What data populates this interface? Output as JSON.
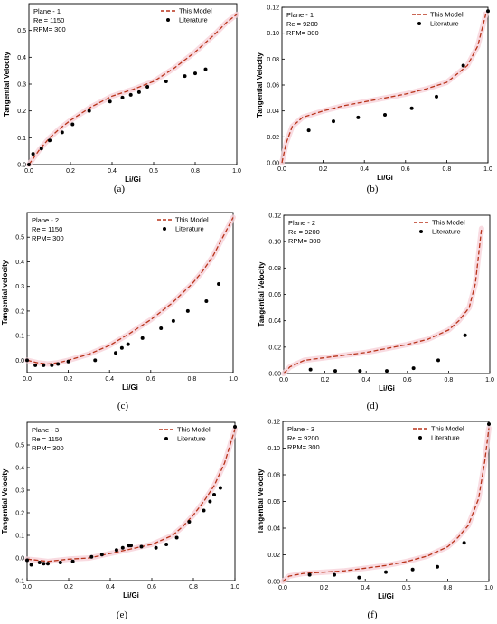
{
  "figure": {
    "colors": {
      "model": "#b8341b",
      "literature": "#000000",
      "glow": "#f7d2da"
    },
    "legend_model": "This Model",
    "legend_literature": "Literature"
  },
  "chart_data": [
    {
      "type": "line",
      "caption": "(a)",
      "info": [
        "Plane - 1",
        "Re = 1150",
        "RPM= 300"
      ],
      "xlabel": "Li/Gi",
      "ylabel": "Tangential Velocity",
      "xlim": [
        0,
        1.0
      ],
      "ylim": [
        0,
        0.6
      ],
      "xticks": [
        0,
        0.2,
        0.4,
        0.6,
        0.8,
        1.0
      ],
      "xticklabels": [
        "0.0",
        "0.2",
        "0.4",
        "0.6",
        "0.8",
        "1.0"
      ],
      "yticks": [
        0,
        0.1,
        0.2,
        0.3,
        0.4,
        0.5
      ],
      "yticklabels": [
        "0.0",
        "0.1",
        "0.2",
        "0.3",
        "0.4",
        "0.5"
      ],
      "series": [
        {
          "name": "This Model",
          "kind": "line",
          "x": [
            0,
            0.05,
            0.1,
            0.15,
            0.2,
            0.3,
            0.4,
            0.5,
            0.6,
            0.7,
            0.8,
            0.9,
            0.95,
            1.0
          ],
          "y": [
            0.0,
            0.055,
            0.1,
            0.135,
            0.165,
            0.215,
            0.255,
            0.28,
            0.31,
            0.36,
            0.42,
            0.49,
            0.53,
            0.56
          ]
        },
        {
          "name": "Literature",
          "kind": "scatter",
          "x": [
            0.0,
            0.02,
            0.06,
            0.1,
            0.16,
            0.21,
            0.29,
            0.39,
            0.45,
            0.49,
            0.53,
            0.57,
            0.66,
            0.75,
            0.8,
            0.85
          ],
          "y": [
            0.0,
            0.04,
            0.06,
            0.09,
            0.12,
            0.15,
            0.2,
            0.235,
            0.25,
            0.26,
            0.27,
            0.29,
            0.31,
            0.33,
            0.34,
            0.355
          ]
        }
      ]
    },
    {
      "type": "line",
      "caption": "(b)",
      "info": [
        "Plane - 1",
        "Re = 9200",
        "RPM= 300"
      ],
      "xlabel": "Li/Gi",
      "ylabel": "Tangential Velocity",
      "xlim": [
        0,
        1.0
      ],
      "ylim": [
        0,
        0.12
      ],
      "xticks": [
        0,
        0.2,
        0.4,
        0.6,
        0.8,
        1.0
      ],
      "xticklabels": [
        "0.0",
        "0.2",
        "0.4",
        "0.6",
        "0.8",
        "1.0"
      ],
      "yticks": [
        0,
        0.02,
        0.04,
        0.06,
        0.08,
        0.1,
        0.12
      ],
      "yticklabels": [
        "0.00",
        "0.02",
        "0.04",
        "0.06",
        "0.08",
        "0.10",
        "0.12"
      ],
      "series": [
        {
          "name": "This Model",
          "kind": "line",
          "x": [
            0,
            0.02,
            0.05,
            0.1,
            0.2,
            0.3,
            0.4,
            0.5,
            0.6,
            0.7,
            0.8,
            0.9,
            0.95,
            0.99
          ],
          "y": [
            0.0,
            0.015,
            0.028,
            0.035,
            0.04,
            0.044,
            0.047,
            0.05,
            0.053,
            0.057,
            0.062,
            0.075,
            0.09,
            0.115
          ]
        },
        {
          "name": "Literature",
          "kind": "scatter",
          "x": [
            0.13,
            0.25,
            0.37,
            0.5,
            0.63,
            0.75,
            0.88,
            1.0
          ],
          "y": [
            0.025,
            0.032,
            0.035,
            0.037,
            0.042,
            0.051,
            0.075,
            0.117
          ]
        }
      ]
    },
    {
      "type": "line",
      "caption": "(c)",
      "info": [
        "Plane - 2",
        "Re = 1150",
        "RPM= 300"
      ],
      "xlabel": "Li/Gi",
      "ylabel": "Tangential velocity",
      "xlim": [
        0,
        1.0
      ],
      "ylim": [
        -0.05,
        0.6
      ],
      "xticks": [
        0,
        0.2,
        0.4,
        0.6,
        0.8,
        1.0
      ],
      "xticklabels": [
        "0.0",
        "0.2",
        "0.4",
        "0.6",
        "0.8",
        "1.0"
      ],
      "yticks": [
        0,
        0.1,
        0.2,
        0.3,
        0.4,
        0.5
      ],
      "yticklabels": [
        "0.0",
        "0.1",
        "0.2",
        "0.3",
        "0.4",
        "0.5"
      ],
      "series": [
        {
          "name": "This Model",
          "kind": "line",
          "x": [
            0,
            0.05,
            0.1,
            0.15,
            0.2,
            0.3,
            0.4,
            0.5,
            0.6,
            0.7,
            0.8,
            0.85,
            0.9,
            0.95,
            1.0
          ],
          "y": [
            0.0,
            -0.01,
            -0.015,
            -0.01,
            0.0,
            0.025,
            0.06,
            0.11,
            0.165,
            0.23,
            0.31,
            0.36,
            0.42,
            0.5,
            0.58
          ]
        },
        {
          "name": "Literature",
          "kind": "scatter",
          "x": [
            0.0,
            0.04,
            0.08,
            0.12,
            0.15,
            0.2,
            0.33,
            0.43,
            0.46,
            0.49,
            0.56,
            0.65,
            0.71,
            0.78,
            0.87,
            0.93
          ],
          "y": [
            0.0,
            -0.02,
            -0.02,
            -0.02,
            -0.015,
            -0.005,
            0.0,
            0.03,
            0.05,
            0.065,
            0.09,
            0.13,
            0.16,
            0.2,
            0.24,
            0.31
          ]
        }
      ]
    },
    {
      "type": "line",
      "caption": "(d)",
      "info": [
        "Plane - 2",
        "Re = 9200",
        "RPM= 300"
      ],
      "xlabel": "Li/Gi",
      "ylabel": "Tangential Velocity",
      "xlim": [
        0,
        1.0
      ],
      "ylim": [
        0,
        0.12
      ],
      "xticks": [
        0,
        0.2,
        0.4,
        0.6,
        0.8,
        1.0
      ],
      "xticklabels": [
        "0.0",
        "0.2",
        "0.4",
        "0.6",
        "0.8",
        "1.0"
      ],
      "yticks": [
        0,
        0.02,
        0.04,
        0.06,
        0.08,
        0.1,
        0.12
      ],
      "yticklabels": [
        "0.00",
        "0.02",
        "0.04",
        "0.06",
        "0.08",
        "0.10",
        "0.12"
      ],
      "series": [
        {
          "name": "This Model",
          "kind": "line",
          "x": [
            0,
            0.03,
            0.1,
            0.2,
            0.3,
            0.4,
            0.5,
            0.6,
            0.7,
            0.8,
            0.85,
            0.9,
            0.93,
            0.96
          ],
          "y": [
            0.0,
            0.005,
            0.01,
            0.012,
            0.014,
            0.016,
            0.019,
            0.022,
            0.026,
            0.033,
            0.04,
            0.05,
            0.068,
            0.11
          ]
        },
        {
          "name": "Literature",
          "kind": "scatter",
          "x": [
            0.13,
            0.25,
            0.37,
            0.5,
            0.63,
            0.75,
            0.88
          ],
          "y": [
            0.003,
            0.002,
            0.002,
            0.002,
            0.004,
            0.01,
            0.029
          ]
        }
      ]
    },
    {
      "type": "line",
      "caption": "(e)",
      "info": [
        "Plane - 3",
        "Re = 1150",
        "RPM= 300"
      ],
      "xlabel": "Li/Gi",
      "ylabel": "Tangential Velocity",
      "xlim": [
        0,
        1.0
      ],
      "ylim": [
        -0.1,
        0.6
      ],
      "xticks": [
        0,
        0.2,
        0.4,
        0.6,
        0.8,
        1.0
      ],
      "xticklabels": [
        "0.0",
        "0.2",
        "0.4",
        "0.6",
        "0.8",
        "1.0"
      ],
      "yticks": [
        -0.1,
        0,
        0.1,
        0.2,
        0.3,
        0.4,
        0.5
      ],
      "yticklabels": [
        "-0.1",
        "0.0",
        "0.1",
        "0.2",
        "0.3",
        "0.4",
        "0.5"
      ],
      "series": [
        {
          "name": "This Model",
          "kind": "line",
          "x": [
            0,
            0.05,
            0.1,
            0.2,
            0.3,
            0.4,
            0.5,
            0.6,
            0.7,
            0.75,
            0.8,
            0.85,
            0.9,
            0.95,
            1.0
          ],
          "y": [
            -0.005,
            -0.01,
            -0.015,
            -0.005,
            0.0,
            0.02,
            0.04,
            0.06,
            0.1,
            0.14,
            0.19,
            0.25,
            0.32,
            0.42,
            0.57
          ]
        },
        {
          "name": "Literature",
          "kind": "scatter",
          "x": [
            0.0,
            0.02,
            0.06,
            0.08,
            0.1,
            0.16,
            0.22,
            0.31,
            0.36,
            0.43,
            0.46,
            0.49,
            0.5,
            0.55,
            0.62,
            0.67,
            0.72,
            0.78,
            0.85,
            0.88,
            0.9,
            0.93,
            1.0
          ],
          "y": [
            -0.01,
            -0.03,
            -0.02,
            -0.025,
            -0.025,
            -0.02,
            -0.015,
            0.005,
            0.015,
            0.035,
            0.045,
            0.055,
            0.055,
            0.05,
            0.045,
            0.06,
            0.09,
            0.16,
            0.21,
            0.25,
            0.28,
            0.31,
            0.58
          ]
        }
      ]
    },
    {
      "type": "line",
      "caption": "(f)",
      "info": [
        "Plane - 3",
        "Re = 9200",
        "RPM= 300"
      ],
      "xlabel": "Li/Gi",
      "ylabel": "Tangential Velocity",
      "xlim": [
        0,
        1.0
      ],
      "ylim": [
        0,
        0.12
      ],
      "xticks": [
        0,
        0.2,
        0.4,
        0.6,
        0.8,
        1.0
      ],
      "xticklabels": [
        "0.0",
        "0.2",
        "0.4",
        "0.6",
        "0.8",
        "1.0"
      ],
      "yticks": [
        0,
        0.02,
        0.04,
        0.06,
        0.08,
        0.1,
        0.12
      ],
      "yticklabels": [
        "0.00",
        "0.02",
        "0.04",
        "0.06",
        "0.08",
        "0.10",
        "0.12"
      ],
      "series": [
        {
          "name": "This Model",
          "kind": "line",
          "x": [
            0,
            0.03,
            0.1,
            0.2,
            0.3,
            0.4,
            0.5,
            0.6,
            0.7,
            0.8,
            0.85,
            0.9,
            0.95,
            0.98,
            1.0
          ],
          "y": [
            0.0,
            0.004,
            0.006,
            0.007,
            0.008,
            0.01,
            0.012,
            0.015,
            0.019,
            0.026,
            0.033,
            0.042,
            0.062,
            0.09,
            0.115
          ]
        },
        {
          "name": "Literature",
          "kind": "scatter",
          "x": [
            0.13,
            0.25,
            0.37,
            0.5,
            0.63,
            0.75,
            0.88,
            1.0
          ],
          "y": [
            0.005,
            0.005,
            0.003,
            0.007,
            0.009,
            0.011,
            0.029,
            0.118
          ]
        }
      ]
    }
  ]
}
